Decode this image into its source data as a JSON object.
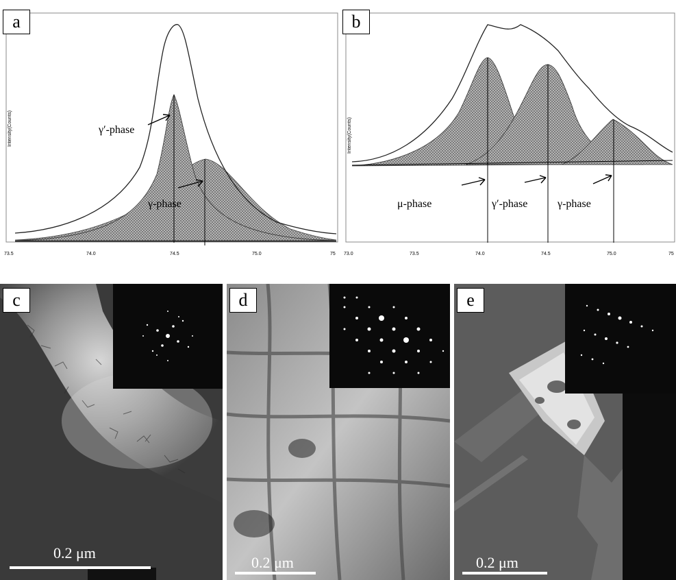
{
  "panel_a": {
    "label": "a",
    "ylabel": "Intensity(Counts)",
    "ticks": [
      "73.5",
      "74.0",
      "74.5",
      "75.0",
      "75"
    ],
    "annotations": {
      "gamma_prime": "γ′-phase",
      "gamma": "γ-phase"
    }
  },
  "panel_b": {
    "label": "b",
    "ylabel": "Intensity(Counts)",
    "ticks": [
      "73.0",
      "73.5",
      "74.0",
      "74.5",
      "75.0",
      "75"
    ],
    "annotations": {
      "mu": "μ-phase",
      "gamma_prime": "γ′-phase",
      "gamma": "γ-phase"
    }
  },
  "panel_c": {
    "label": "c",
    "scale": "0.2 μm"
  },
  "panel_d": {
    "label": "d",
    "scale": "0.2 μm"
  },
  "panel_e": {
    "label": "e",
    "scale": "0.2 μm"
  }
}
